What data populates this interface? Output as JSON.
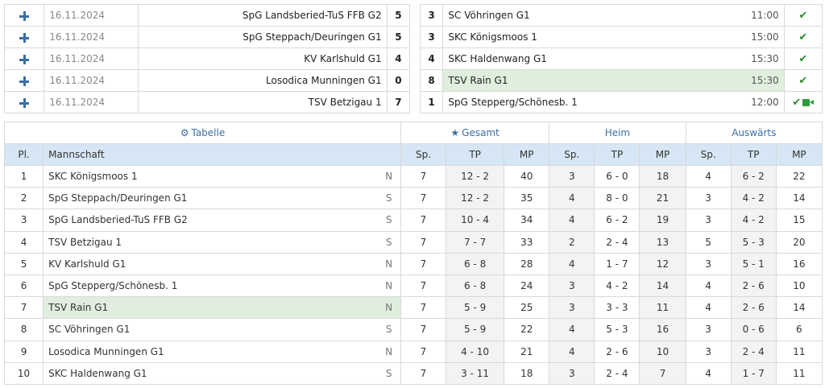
{
  "matches": [
    {
      "date": "16.11.2024",
      "home": "SpG Landsberied-TuS FFB G2",
      "home_score": "5",
      "guest_score": "3",
      "guest": "SC Vöhringen G1",
      "time": "11:00",
      "highlight_guest": false,
      "video": false
    },
    {
      "date": "16.11.2024",
      "home": "SpG Steppach/Deuringen G1",
      "home_score": "5",
      "guest_score": "3",
      "guest": "SKC Königsmoos 1",
      "time": "15:00",
      "highlight_guest": false,
      "video": false
    },
    {
      "date": "16.11.2024",
      "home": "KV Karlshuld G1",
      "home_score": "4",
      "guest_score": "4",
      "guest": "SKC Haldenwang G1",
      "time": "15:30",
      "highlight_guest": false,
      "video": false
    },
    {
      "date": "16.11.2024",
      "home": "Losodica Munningen G1",
      "home_score": "0",
      "guest_score": "8",
      "guest": "TSV Rain G1",
      "time": "15:30",
      "highlight_guest": true,
      "video": false
    },
    {
      "date": "16.11.2024",
      "home": "TSV Betzigau 1",
      "home_score": "7",
      "guest_score": "1",
      "guest": "SpG Stepperg/Schönesb. 1",
      "time": "12:00",
      "highlight_guest": false,
      "video": true
    }
  ],
  "standings": {
    "groups": {
      "tabelle": "Tabelle",
      "gesamt": "Gesamt",
      "heim": "Heim",
      "auswaerts": "Auswärts"
    },
    "icons": {
      "tabelle": "gear-icon",
      "gesamt": "star-icon",
      "expand": "plus-icon",
      "status": "check-icon",
      "video": "video-icon"
    },
    "columns": {
      "pl": "Pl.",
      "team": "Mannschaft",
      "sp": "Sp.",
      "tp": "TP",
      "mp": "MP"
    },
    "rows": [
      {
        "pl": "1",
        "team": "SKC Königsmoos 1",
        "grp": "N",
        "g_sp": "7",
        "g_tp": "12 - 2",
        "g_mp": "40",
        "h_sp": "3",
        "h_tp": "6 - 0",
        "h_mp": "18",
        "a_sp": "4",
        "a_tp": "6 - 2",
        "a_mp": "22",
        "highlight": false
      },
      {
        "pl": "2",
        "team": "SpG Steppach/Deuringen G1",
        "grp": "S",
        "g_sp": "7",
        "g_tp": "12 - 2",
        "g_mp": "35",
        "h_sp": "4",
        "h_tp": "8 - 0",
        "h_mp": "21",
        "a_sp": "3",
        "a_tp": "4 - 2",
        "a_mp": "14",
        "highlight": false
      },
      {
        "pl": "3",
        "team": "SpG Landsberied-TuS FFB G2",
        "grp": "S",
        "g_sp": "7",
        "g_tp": "10 - 4",
        "g_mp": "34",
        "h_sp": "4",
        "h_tp": "6 - 2",
        "h_mp": "19",
        "a_sp": "3",
        "a_tp": "4 - 2",
        "a_mp": "15",
        "highlight": false
      },
      {
        "pl": "4",
        "team": "TSV Betzigau 1",
        "grp": "S",
        "g_sp": "7",
        "g_tp": "7 - 7",
        "g_mp": "33",
        "h_sp": "2",
        "h_tp": "2 - 4",
        "h_mp": "13",
        "a_sp": "5",
        "a_tp": "5 - 3",
        "a_mp": "20",
        "highlight": false
      },
      {
        "pl": "5",
        "team": "KV Karlshuld G1",
        "grp": "N",
        "g_sp": "7",
        "g_tp": "6 - 8",
        "g_mp": "28",
        "h_sp": "4",
        "h_tp": "1 - 7",
        "h_mp": "12",
        "a_sp": "3",
        "a_tp": "5 - 1",
        "a_mp": "16",
        "highlight": false
      },
      {
        "pl": "6",
        "team": "SpG Stepperg/Schönesb. 1",
        "grp": "N",
        "g_sp": "7",
        "g_tp": "6 - 8",
        "g_mp": "24",
        "h_sp": "3",
        "h_tp": "4 - 2",
        "h_mp": "14",
        "a_sp": "4",
        "a_tp": "2 - 6",
        "a_mp": "10",
        "highlight": false
      },
      {
        "pl": "7",
        "team": "TSV Rain G1",
        "grp": "N",
        "g_sp": "7",
        "g_tp": "5 - 9",
        "g_mp": "25",
        "h_sp": "3",
        "h_tp": "3 - 3",
        "h_mp": "11",
        "a_sp": "4",
        "a_tp": "2 - 6",
        "a_mp": "14",
        "highlight": true
      },
      {
        "pl": "8",
        "team": "SC Vöhringen G1",
        "grp": "S",
        "g_sp": "7",
        "g_tp": "5 - 9",
        "g_mp": "22",
        "h_sp": "4",
        "h_tp": "5 - 3",
        "h_mp": "16",
        "a_sp": "3",
        "a_tp": "0 - 6",
        "a_mp": "6",
        "highlight": false
      },
      {
        "pl": "9",
        "team": "Losodica Munningen G1",
        "grp": "N",
        "g_sp": "7",
        "g_tp": "4 - 10",
        "g_mp": "21",
        "h_sp": "4",
        "h_tp": "2 - 6",
        "h_mp": "10",
        "a_sp": "3",
        "a_tp": "2 - 4",
        "a_mp": "11",
        "highlight": false
      },
      {
        "pl": "10",
        "team": "SKC Haldenwang G1",
        "grp": "S",
        "g_sp": "7",
        "g_tp": "3 - 11",
        "g_mp": "18",
        "h_sp": "3",
        "h_tp": "2 - 4",
        "h_mp": "7",
        "a_sp": "4",
        "a_tp": "1 - 7",
        "a_mp": "11",
        "highlight": false
      }
    ]
  },
  "colors": {
    "accent": "#3b6ea5",
    "header_bg": "#d6e6f4",
    "highlight": "#dfeedd",
    "check": "#2e8b2e"
  }
}
